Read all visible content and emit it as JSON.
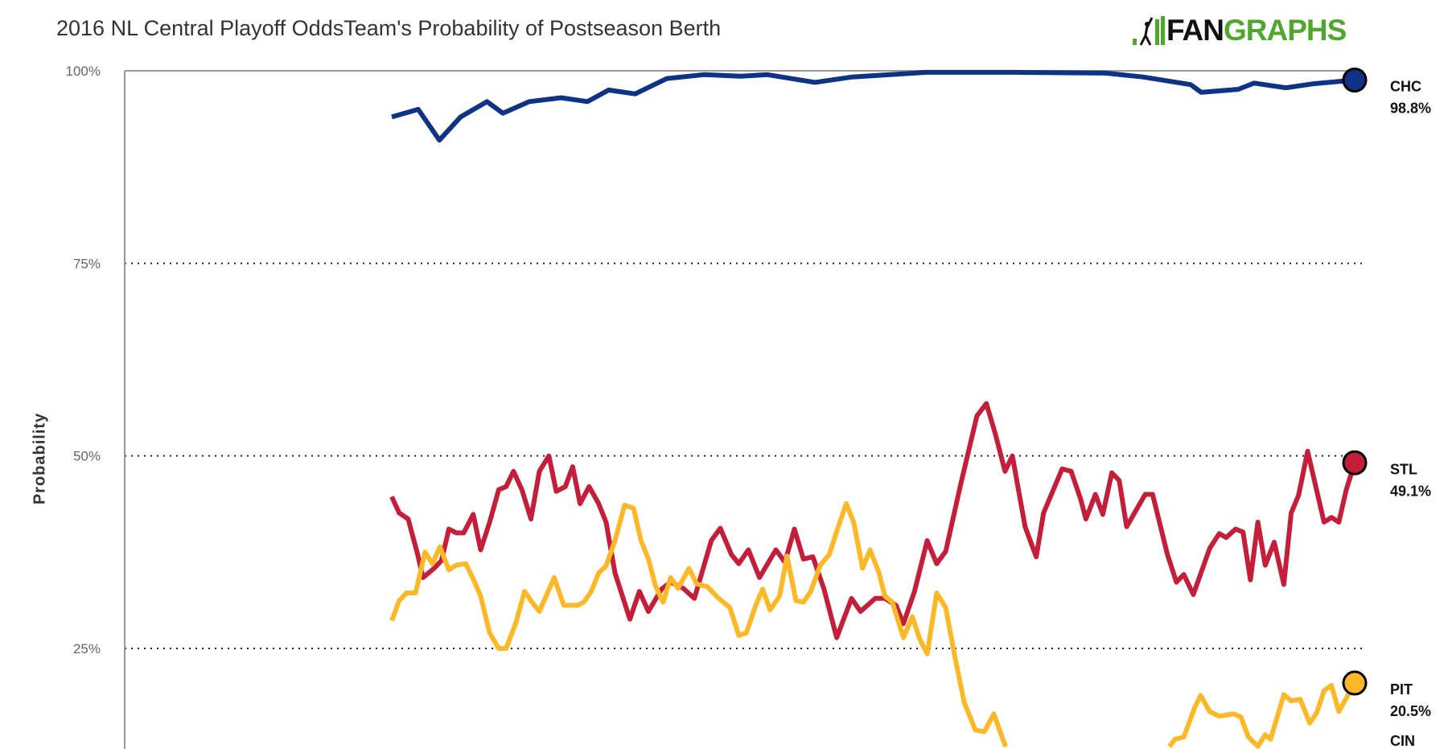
{
  "title": "2016 NL Central Playoff OddsTeam's Probability of Postseason Berth",
  "logo": {
    "part1": "FAN",
    "part2": "GRAPHS"
  },
  "chart_data": {
    "type": "line",
    "title": "2016 NL Central Playoff OddsTeam's Probability of Postseason Berth",
    "xlabel": "",
    "ylabel": "Probability",
    "x_unit": "season day index (approx.)",
    "xlim": [
      0,
      182
    ],
    "ylim": [
      0,
      100
    ],
    "yticks": [
      {
        "value": 100,
        "label": "100%"
      },
      {
        "value": 75,
        "label": "75%"
      },
      {
        "value": 50,
        "label": "50%"
      },
      {
        "value": 25,
        "label": "25%"
      }
    ],
    "grid": "dotted horizontal",
    "legend": "end-of-line labels, right",
    "series": [
      {
        "name": "CHC",
        "final_label": "98.8%",
        "color": "#0e3386",
        "points": [
          [
            0,
            94
          ],
          [
            5,
            95
          ],
          [
            9,
            91
          ],
          [
            13,
            94
          ],
          [
            18,
            96
          ],
          [
            21,
            94.5
          ],
          [
            26,
            96
          ],
          [
            32,
            96.5
          ],
          [
            37,
            96
          ],
          [
            41,
            97.5
          ],
          [
            46,
            97
          ],
          [
            52,
            99
          ],
          [
            59,
            99.5
          ],
          [
            66,
            99.3
          ],
          [
            71,
            99.5
          ],
          [
            80,
            98.5
          ],
          [
            87,
            99.2
          ],
          [
            101,
            99.8
          ],
          [
            118,
            99.8
          ],
          [
            135,
            99.7
          ],
          [
            142,
            99.2
          ],
          [
            151,
            98.2
          ],
          [
            153,
            97.2
          ],
          [
            160,
            97.6
          ],
          [
            163,
            98.4
          ],
          [
            169,
            97.8
          ],
          [
            174,
            98.3
          ],
          [
            182,
            98.8
          ]
        ]
      },
      {
        "name": "STL",
        "final_label": "49.1%",
        "color": "#c41e3a",
        "points": [
          [
            0,
            44.7
          ],
          [
            1.4,
            42.6
          ],
          [
            3.1,
            41.8
          ],
          [
            4.9,
            37.2
          ],
          [
            5.9,
            34.2
          ],
          [
            8,
            35.4
          ],
          [
            9.4,
            36.4
          ],
          [
            10.8,
            40.5
          ],
          [
            12.2,
            40
          ],
          [
            13.6,
            40
          ],
          [
            15.4,
            42.4
          ],
          [
            16.8,
            37.8
          ],
          [
            18.5,
            41.4
          ],
          [
            20.2,
            45.6
          ],
          [
            21.6,
            46
          ],
          [
            23,
            48
          ],
          [
            24.6,
            45.6
          ],
          [
            26.3,
            41.8
          ],
          [
            27.9,
            48
          ],
          [
            29.7,
            50
          ],
          [
            31.1,
            45.4
          ],
          [
            32.8,
            46
          ],
          [
            34.2,
            48.6
          ],
          [
            35.6,
            43.8
          ],
          [
            37.3,
            46
          ],
          [
            39.1,
            43.8
          ],
          [
            40.5,
            41.4
          ],
          [
            42.2,
            34.8
          ],
          [
            45,
            28.8
          ],
          [
            46.8,
            32.4
          ],
          [
            48.5,
            29.8
          ],
          [
            51,
            32.7
          ],
          [
            52.7,
            33.6
          ],
          [
            55.1,
            32.8
          ],
          [
            57.2,
            31.5
          ],
          [
            60.4,
            39
          ],
          [
            62.1,
            40.6
          ],
          [
            64.2,
            37.2
          ],
          [
            65.6,
            36
          ],
          [
            67.4,
            37.8
          ],
          [
            69.5,
            34.2
          ],
          [
            72.6,
            37.8
          ],
          [
            74.3,
            36.2
          ],
          [
            76.1,
            40.5
          ],
          [
            77.8,
            36.6
          ],
          [
            79.6,
            36.9
          ],
          [
            81.7,
            32.7
          ],
          [
            84.1,
            26.4
          ],
          [
            86.9,
            31.5
          ],
          [
            88.6,
            29.8
          ],
          [
            91.4,
            31.5
          ],
          [
            93.2,
            31.5
          ],
          [
            95.3,
            30.6
          ],
          [
            96.7,
            28.2
          ],
          [
            98.8,
            32.4
          ],
          [
            101.2,
            39
          ],
          [
            103,
            36
          ],
          [
            104.7,
            37.6
          ],
          [
            107.5,
            46.2
          ],
          [
            110.6,
            55.2
          ],
          [
            112.4,
            56.8
          ],
          [
            114.1,
            52.8
          ],
          [
            115.9,
            48
          ],
          [
            117.3,
            50
          ],
          [
            119.7,
            40.8
          ],
          [
            121.8,
            36.9
          ],
          [
            123.2,
            42.6
          ],
          [
            126.7,
            48.3
          ],
          [
            128.4,
            48
          ],
          [
            130.2,
            44.4
          ],
          [
            131.2,
            41.8
          ],
          [
            133,
            45
          ],
          [
            134.4,
            42.4
          ],
          [
            136.1,
            47.8
          ],
          [
            137.5,
            46.8
          ],
          [
            138.9,
            40.8
          ],
          [
            142.4,
            45
          ],
          [
            143.8,
            45
          ],
          [
            146.6,
            37.2
          ],
          [
            148.3,
            33.6
          ],
          [
            149.7,
            34.6
          ],
          [
            151.5,
            32
          ],
          [
            154.6,
            38
          ],
          [
            156.4,
            39.9
          ],
          [
            157.7,
            39.4
          ],
          [
            159.5,
            40.5
          ],
          [
            160.9,
            40.1
          ],
          [
            162.3,
            33.9
          ],
          [
            163.7,
            41.4
          ],
          [
            165.1,
            35.8
          ],
          [
            166.8,
            38.8
          ],
          [
            168.6,
            33.3
          ],
          [
            170,
            42.6
          ],
          [
            171.4,
            44.9
          ],
          [
            173.1,
            50.6
          ],
          [
            176.2,
            41.4
          ],
          [
            177.6,
            42
          ],
          [
            179,
            41.4
          ],
          [
            180.4,
            45.6
          ],
          [
            182,
            49.1
          ]
        ]
      },
      {
        "name": "PIT",
        "final_label": "20.5%",
        "color": "#fdb827",
        "points": [
          [
            0,
            28.6
          ],
          [
            1.4,
            31.2
          ],
          [
            2.8,
            32.2
          ],
          [
            4.5,
            32.2
          ],
          [
            6.3,
            37.5
          ],
          [
            7.7,
            36
          ],
          [
            9.1,
            38.2
          ],
          [
            10.8,
            35.2
          ],
          [
            12.2,
            35.8
          ],
          [
            14,
            36
          ],
          [
            15.4,
            34
          ],
          [
            16.8,
            31.8
          ],
          [
            18.5,
            27
          ],
          [
            20.2,
            25
          ],
          [
            21.6,
            25
          ],
          [
            23.4,
            28.2
          ],
          [
            25.1,
            32.4
          ],
          [
            26.5,
            31
          ],
          [
            27.9,
            29.8
          ],
          [
            30.7,
            34.2
          ],
          [
            32.5,
            30.6
          ],
          [
            35.1,
            30.6
          ],
          [
            36.3,
            31
          ],
          [
            37.7,
            32.4
          ],
          [
            39.1,
            34.8
          ],
          [
            40.5,
            35.7
          ],
          [
            42.2,
            39
          ],
          [
            44,
            43.6
          ],
          [
            45.7,
            43.2
          ],
          [
            47.1,
            39
          ],
          [
            48.5,
            36.6
          ],
          [
            49.9,
            33
          ],
          [
            51.3,
            31
          ],
          [
            52.7,
            34.2
          ],
          [
            54.1,
            32.8
          ],
          [
            56.2,
            35.4
          ],
          [
            57.6,
            33.4
          ],
          [
            59.7,
            33
          ],
          [
            61.8,
            31.5
          ],
          [
            63.9,
            30.3
          ],
          [
            65.6,
            26.7
          ],
          [
            67,
            27
          ],
          [
            68.8,
            30.6
          ],
          [
            70.1,
            32.7
          ],
          [
            71.5,
            30
          ],
          [
            73.3,
            31.8
          ],
          [
            74.7,
            37
          ],
          [
            76.4,
            31.2
          ],
          [
            77.8,
            31
          ],
          [
            79.2,
            32.4
          ],
          [
            81,
            35.8
          ],
          [
            82.7,
            37.2
          ],
          [
            84.1,
            40.2
          ],
          [
            85.9,
            43.8
          ],
          [
            87.3,
            41.4
          ],
          [
            89,
            35.4
          ],
          [
            90.4,
            37.8
          ],
          [
            92.1,
            34.8
          ],
          [
            93.2,
            31.8
          ],
          [
            94.6,
            31
          ],
          [
            96.7,
            26.4
          ],
          [
            98.4,
            29.1
          ],
          [
            99.8,
            26.2
          ],
          [
            101.2,
            24.3
          ],
          [
            103,
            32.2
          ],
          [
            104.7,
            30.3
          ],
          [
            106.4,
            24
          ],
          [
            108.2,
            18
          ],
          [
            110.3,
            14.4
          ],
          [
            112,
            14.2
          ],
          [
            113.8,
            16.5
          ],
          [
            115.5,
            13.2
          ],
          [
            116.9,
            10.8
          ],
          [
            121.5,
            8
          ],
          [
            128.4,
            6
          ],
          [
            135.4,
            7
          ],
          [
            142.4,
            8
          ],
          [
            146.2,
            11.5
          ],
          [
            148,
            13.2
          ],
          [
            149.7,
            13.5
          ],
          [
            151.8,
            17.4
          ],
          [
            152.9,
            18.9
          ],
          [
            154.6,
            16.8
          ],
          [
            156.4,
            16.2
          ],
          [
            159.1,
            16.5
          ],
          [
            160.5,
            16.1
          ],
          [
            161.9,
            13.5
          ],
          [
            163.7,
            12.3
          ],
          [
            165.1,
            13.8
          ],
          [
            166.1,
            13.2
          ],
          [
            168.6,
            19
          ],
          [
            170,
            18.2
          ],
          [
            171.7,
            18.4
          ],
          [
            173.5,
            15.3
          ],
          [
            174.8,
            16.6
          ],
          [
            176.2,
            19.5
          ],
          [
            177.6,
            20.2
          ],
          [
            179,
            16.8
          ],
          [
            182,
            20.5
          ]
        ]
      },
      {
        "name": "CIN",
        "final_label": null,
        "color": "#c6011f",
        "points": []
      }
    ]
  }
}
